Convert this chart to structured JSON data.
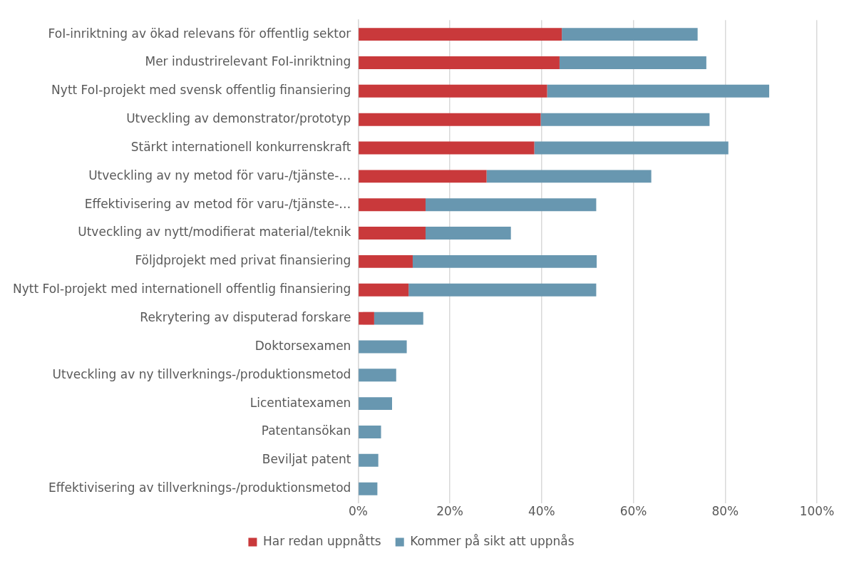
{
  "chart_data": {
    "type": "bar",
    "orientation": "horizontal",
    "stacked": true,
    "categories": [
      "FoI-inriktning av ökad relevans för offentlig sektor",
      "Mer industrirelevant FoI-inriktning",
      "Nytt FoI-projekt med svensk offentlig finansiering",
      "Utveckling av demonstrator/prototyp",
      "Stärkt internationell konkurrenskraft",
      "Utveckling av ny metod för varu-/tjänste-…",
      "Effektivisering av metod för varu-/tjänste-…",
      "Utveckling av nytt/modifierat material/teknik",
      "Följdprojekt med privat finansiering",
      "Nytt FoI-projekt med internationell offentlig finansiering",
      "Rekrytering av disputerad forskare",
      "Doktorsexamen",
      "Utveckling av ny tillverknings-/produktionsmetod",
      "Licentiatexamen",
      "Patentansökan",
      "Beviljat patent",
      "Effektivisering av tillverknings-/produktionsmetod"
    ],
    "series": [
      {
        "name": "Har redan uppnåtts",
        "color": "#c9393b",
        "values": [
          44.4,
          43.9,
          41.2,
          39.8,
          38.4,
          28.0,
          14.7,
          14.7,
          11.9,
          11.0,
          3.5,
          0,
          0,
          0,
          0,
          0,
          0
        ]
      },
      {
        "name": "Kommer på sikt att uppnås",
        "color": "#6897b0",
        "values": [
          29.6,
          32.0,
          48.4,
          36.8,
          42.3,
          35.9,
          37.2,
          18.6,
          40.1,
          40.9,
          10.7,
          10.6,
          8.3,
          7.4,
          5.0,
          4.4,
          4.2
        ]
      }
    ],
    "xlim": [
      0,
      100
    ],
    "xticks": [
      {
        "value": 0,
        "label": "0%"
      },
      {
        "value": 20,
        "label": "20%"
      },
      {
        "value": 40,
        "label": "40%"
      },
      {
        "value": 60,
        "label": "60%"
      },
      {
        "value": 80,
        "label": "80%"
      },
      {
        "value": 100,
        "label": "100%"
      }
    ],
    "grid": "x",
    "legend": "bottom"
  }
}
